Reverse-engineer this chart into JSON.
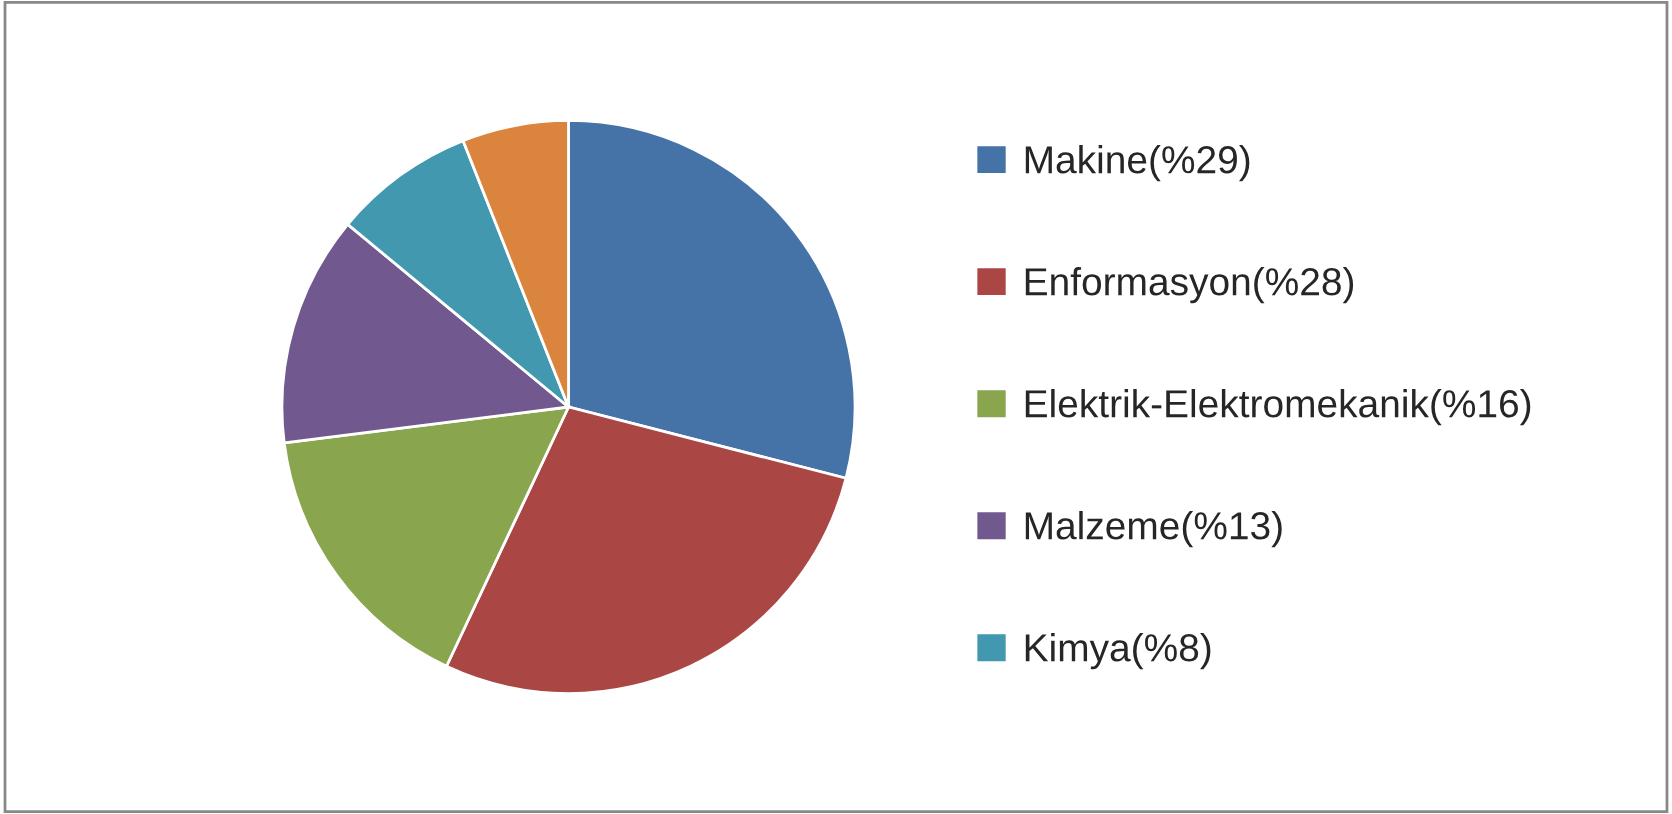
{
  "chart_data": {
    "type": "pie",
    "categories": [
      "Makine(%29)",
      "Enformasyon(%28)",
      "Elektrik-Elektromekanik(%16)",
      "Malzeme(%13)",
      "Kimya(%8)",
      null
    ],
    "values": [
      29,
      28,
      16,
      13,
      8,
      6
    ],
    "colors": [
      "#4572a7",
      "#aa4643",
      "#89a54e",
      "#71588f",
      "#4198af",
      "#db843d"
    ],
    "legend": "right"
  }
}
